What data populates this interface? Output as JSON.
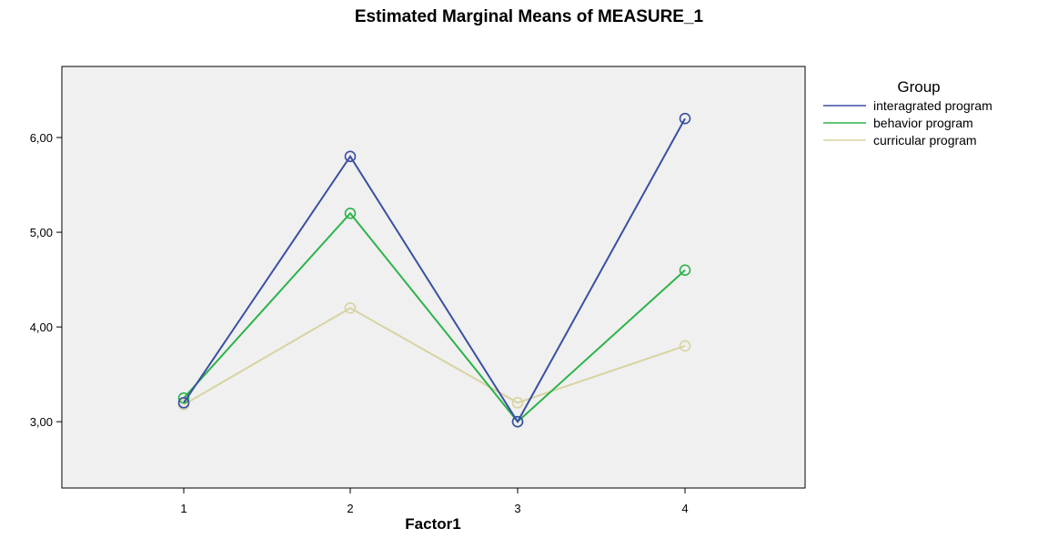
{
  "chart_data": {
    "type": "line",
    "title": "Estimated Marginal Means of MEASURE_1",
    "xlabel": "Factor1",
    "ylabel": "",
    "categories": [
      "1",
      "2",
      "3",
      "4"
    ],
    "ylim": [
      2.3,
      6.75
    ],
    "yticks": [
      3.0,
      4.0,
      5.0,
      6.0
    ],
    "ytick_labels": [
      "3,00",
      "4,00",
      "5,00",
      "6,00"
    ],
    "grid": false,
    "legend_title": "Group",
    "legend_position": "right",
    "series": [
      {
        "name": "interagrated program",
        "values": [
          3.2,
          5.8,
          3.0,
          6.2
        ],
        "color": "#3b4fa3"
      },
      {
        "name": "behavior program",
        "values": [
          3.25,
          5.2,
          3.0,
          4.6
        ],
        "color": "#2db34a"
      },
      {
        "name": "curricular program",
        "values": [
          3.18,
          4.2,
          3.2,
          3.8
        ],
        "color": "#d8d3a2"
      }
    ],
    "plot_background": "#f0f0f0"
  }
}
